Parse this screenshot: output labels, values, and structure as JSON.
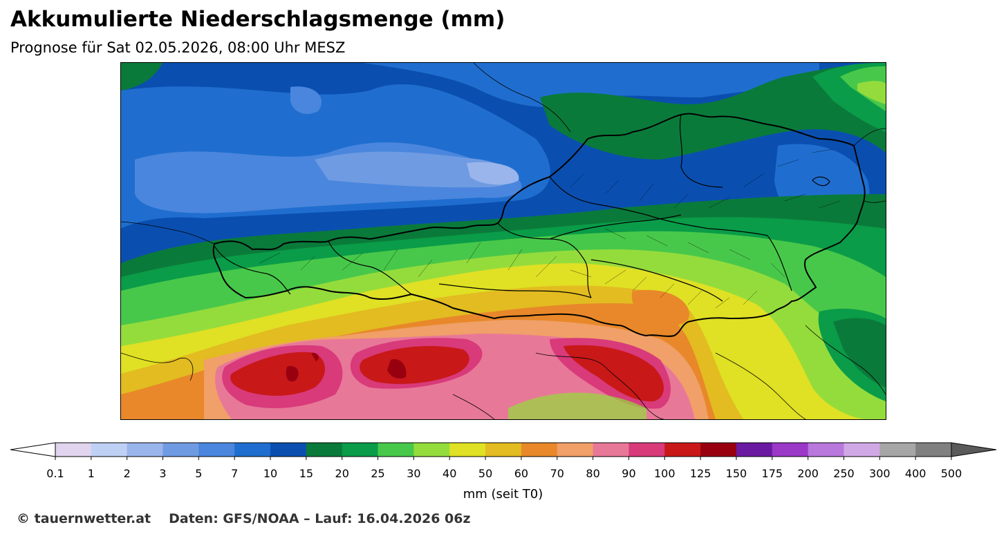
{
  "header": {
    "title": "Akkumulierte Niederschlagsmenge (mm)",
    "subtitle": "Prognose für Sat 02.05.2026, 08:00 Uhr MESZ"
  },
  "map": {
    "region": "Austria and surrounding Alpine region",
    "layers": [
      "precipitation-fill",
      "country-borders",
      "state-borders",
      "district-borders"
    ]
  },
  "colorbar": {
    "levels": [
      "0.1",
      "1",
      "2",
      "3",
      "5",
      "7",
      "10",
      "15",
      "20",
      "25",
      "30",
      "40",
      "50",
      "60",
      "70",
      "80",
      "90",
      "100",
      "125",
      "150",
      "175",
      "200",
      "250",
      "300",
      "400",
      "500"
    ],
    "colors": [
      "#e0d4ee",
      "#bfd0f5",
      "#99b5ec",
      "#6f9be2",
      "#4a86dd",
      "#1f6ecf",
      "#0a4fb0",
      "#0a7a3a",
      "#0a9c48",
      "#48c84a",
      "#94dc3c",
      "#e0e024",
      "#e2bc20",
      "#e8882a",
      "#f0a068",
      "#e87898",
      "#d83a7a",
      "#c81818",
      "#980010",
      "#6a1aa0",
      "#9a38c8",
      "#b878dc",
      "#d0a8e6",
      "#a6a6a6",
      "#808080"
    ],
    "under_color": "#ffffff",
    "over_color": "#5a5a5a",
    "unit_label": "mm (seit T0)"
  },
  "footer": {
    "copyright": "© tauernwetter.at",
    "source": "Daten: GFS/NOAA – Lauf: 16.04.2026 06z"
  }
}
